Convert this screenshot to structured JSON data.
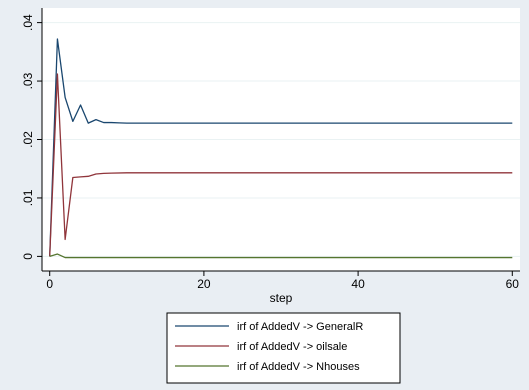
{
  "chart_data": {
    "type": "line",
    "title": "",
    "xlabel": "step",
    "ylabel": "",
    "xlim": [
      0,
      60
    ],
    "ylim": [
      0,
      0.04
    ],
    "xticks": [
      0,
      20,
      40,
      60
    ],
    "xtick_labels": [
      "0",
      "20",
      "40",
      "60"
    ],
    "yticks": [
      0,
      0.01,
      0.02,
      0.03,
      0.04
    ],
    "ytick_labels": [
      "0",
      ".01",
      ".02",
      ".03",
      ".04"
    ],
    "grid": "horizontal",
    "legend_position": "bottom",
    "background_color": "#e9eef3",
    "plot_background_color": "#ffffff",
    "series": [
      {
        "name": "irf of AddedV -> GeneralR",
        "color": "#1a476f",
        "points": [
          [
            0,
            0
          ],
          [
            1,
            0.0372
          ],
          [
            2,
            0.0272
          ],
          [
            3,
            0.0231
          ],
          [
            4,
            0.0259
          ],
          [
            5,
            0.0228
          ],
          [
            6,
            0.0234
          ],
          [
            7,
            0.0229
          ],
          [
            8,
            0.0229
          ],
          [
            9,
            0.02285
          ],
          [
            10,
            0.0228
          ],
          [
            60,
            0.0228
          ]
        ]
      },
      {
        "name": "irf of AddedV -> oilsale",
        "color": "#90353b",
        "points": [
          [
            0,
            0
          ],
          [
            1,
            0.0312
          ],
          [
            2,
            0.0029
          ],
          [
            3,
            0.0135
          ],
          [
            4,
            0.0136
          ],
          [
            5,
            0.0137
          ],
          [
            6,
            0.0141
          ],
          [
            7,
            0.0142
          ],
          [
            8,
            0.01425
          ],
          [
            10,
            0.0143
          ],
          [
            60,
            0.0143
          ]
        ]
      },
      {
        "name": "irf of AddedV -> Nhouses",
        "color": "#55752f",
        "points": [
          [
            0,
            0
          ],
          [
            1,
            0.0004
          ],
          [
            2,
            -0.0002
          ],
          [
            3,
            -0.0002
          ],
          [
            4,
            -0.0002
          ],
          [
            60,
            -0.0002
          ]
        ]
      }
    ]
  }
}
